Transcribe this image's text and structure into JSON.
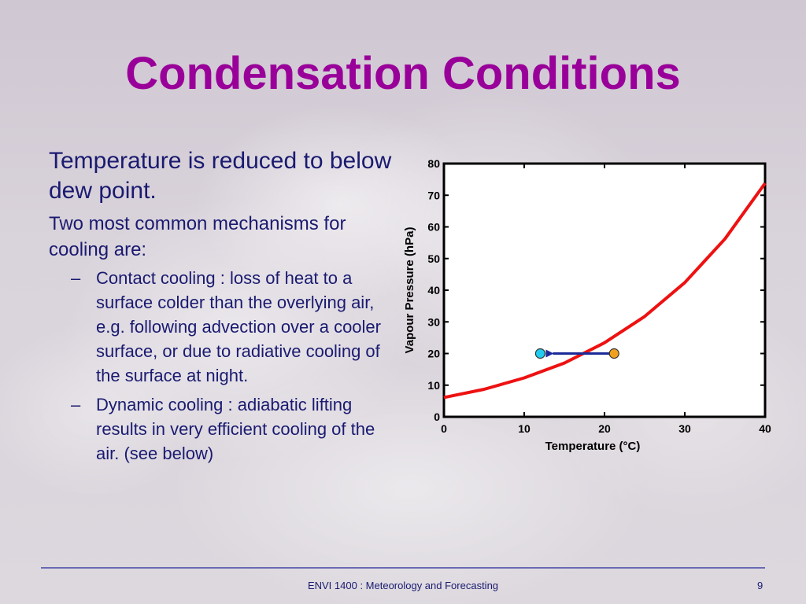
{
  "slide": {
    "title": "Condensation Conditions",
    "point1": "Temperature is reduced to below dew point.",
    "point2": "Two most common mechanisms for cooling are:",
    "subpoints": [
      "Contact cooling : loss of heat to a surface colder than the overlying air, e.g. following advection over a cooler surface, or due to radiative cooling of the surface at night.",
      "Dynamic cooling : adiabatic lifting results in very efficient cooling of the air. (see below)"
    ],
    "dash": "–"
  },
  "footer": {
    "text": "ENVI 1400 : Meteorology and Forecasting",
    "page": "9"
  },
  "colors": {
    "title": "#990099",
    "text": "#1a1a70",
    "curve": "#ee1111",
    "arrow": "#1a2a99",
    "start_point": "#f0a020",
    "end_point": "#22ccee"
  },
  "chart_data": {
    "type": "line",
    "xlabel": "Temperature (°C)",
    "ylabel": "Vapour Pressure (hPa)",
    "xlim": [
      0,
      40
    ],
    "ylim": [
      0,
      80
    ],
    "xticks": [
      0,
      10,
      20,
      30,
      40
    ],
    "yticks": [
      0,
      10,
      20,
      30,
      40,
      50,
      60,
      70,
      80
    ],
    "grid": false,
    "series": [
      {
        "x": [
          0,
          5,
          10,
          15,
          20,
          25,
          30,
          35,
          40
        ],
        "y": [
          6.1,
          8.7,
          12.3,
          17.0,
          23.4,
          31.7,
          42.4,
          56.2,
          73.8
        ]
      }
    ],
    "points": [
      {
        "x": 21.2,
        "y": 20,
        "role": "start"
      },
      {
        "x": 12.0,
        "y": 20,
        "role": "end"
      }
    ],
    "arrow": {
      "from_x": 21.2,
      "to_x": 12.0,
      "y": 20
    }
  }
}
